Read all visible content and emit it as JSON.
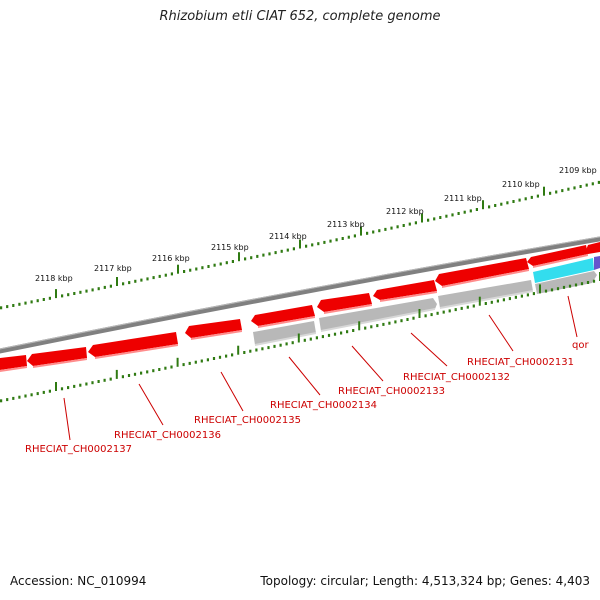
{
  "title": "Rhizobium etli CIAT 652, complete genome",
  "footer": {
    "accession": "Accession: NC_010994",
    "summary": "Topology: circular; Length: 4,513,324 bp; Genes: 4,403"
  },
  "colors": {
    "ruler": "#2f7a12",
    "backbone": "#808080",
    "gene_fwd": "#ee0000",
    "gene_rev": "#b0b0b0",
    "gene_cyan": "#33ddee",
    "gene_purple": "#6655cc",
    "label": "#cc0000"
  },
  "ruler": {
    "ticks": [
      "2109 kbp",
      "2110 kbp",
      "2111 kbp",
      "2112 kbp",
      "2113 kbp",
      "2114 kbp",
      "2115 kbp",
      "2116 kbp",
      "2117 kbp",
      "2118 kbp"
    ]
  },
  "genes": [
    {
      "name": "RHECIAT_CH0002131"
    },
    {
      "name": "RHECIAT_CH0002132"
    },
    {
      "name": "RHECIAT_CH0002133"
    },
    {
      "name": "RHECIAT_CH0002134"
    },
    {
      "name": "RHECIAT_CH0002135"
    },
    {
      "name": "RHECIAT_CH0002136"
    },
    {
      "name": "RHECIAT_CH0002137"
    },
    {
      "name": "qor"
    }
  ]
}
